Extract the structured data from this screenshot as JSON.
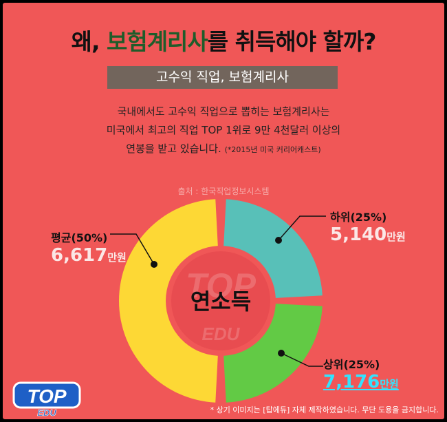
{
  "title": {
    "prefix": "왜, ",
    "highlight": "보험계리사",
    "suffix": "를 취득해야 할까?"
  },
  "subtitle": "고수익 직업, 보험계리사",
  "description": {
    "line1": "국내에서도 고수익 직업으로 뽑히는 보험계리사는",
    "line2": "미국에서 최고의 직업 TOP 1위로 9만 4천달러 이상의",
    "line3": "연봉을 받고 있습니다.",
    "note": "(*2015년 미국 커리어캐스트)"
  },
  "source": "출처 : 한국직업정보시스템",
  "center_label": "연소득",
  "watermark": {
    "top": "TOP",
    "bottom": "EDU"
  },
  "logo": {
    "top": "TOP",
    "bottom": "EDU"
  },
  "labels": {
    "average": {
      "head": "평균(50%)",
      "value": "6,617",
      "unit": "만원"
    },
    "low": {
      "head": "하위(25%)",
      "value": "5,140",
      "unit": "만원"
    },
    "high": {
      "head": "상위(25%)",
      "value": "7,176",
      "unit": "만원"
    }
  },
  "colors": {
    "average": "#fdd835",
    "low": "#58c0b8",
    "high": "#62ca45",
    "background": "#f05757"
  },
  "chart_data": {
    "type": "pie",
    "categories": [
      "평균(50%)",
      "하위(25%)",
      "상위(25%)"
    ],
    "values": [
      50,
      25,
      25
    ],
    "income_manwon": [
      6617,
      5140,
      7176
    ]
  },
  "footer": "* 상기 이미지는 [탑에듀] 자체 제작하였습니다. 무단 도용을 금지합니다."
}
